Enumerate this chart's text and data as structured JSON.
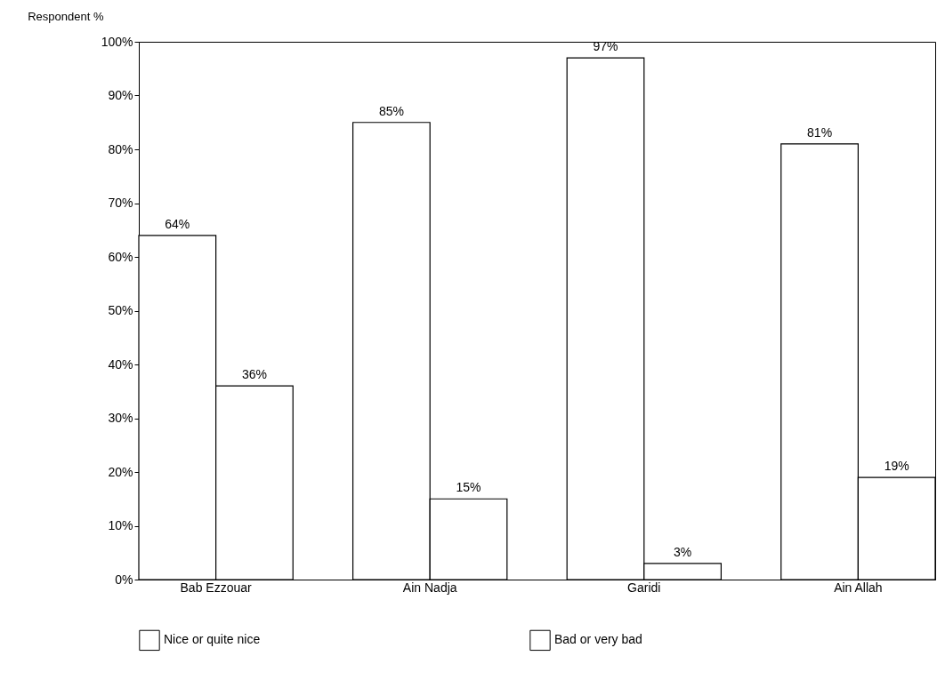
{
  "chart_data": {
    "type": "bar",
    "ylabel": "Respondent %",
    "categories": [
      "Bab Ezzouar",
      "Ain Nadja",
      "Garidi",
      "Ain Allah"
    ],
    "series": [
      {
        "name": "Nice or quite nice",
        "color": "#ffffff",
        "values": [
          64,
          85,
          97,
          81
        ],
        "value_labels": [
          "64%",
          "85%",
          "97%",
          "81%"
        ]
      },
      {
        "name": "Bad or very bad",
        "color": "#ffffff",
        "values": [
          36,
          15,
          3,
          19
        ],
        "value_labels": [
          "36%",
          "15%",
          "3%",
          "19%"
        ]
      }
    ],
    "ylim": [
      0,
      100
    ],
    "yticks": [
      {
        "value": 0,
        "label": "0%"
      },
      {
        "value": 10,
        "label": "10%"
      },
      {
        "value": 20,
        "label": "20%"
      },
      {
        "value": 30,
        "label": "30%"
      },
      {
        "value": 40,
        "label": "40%"
      },
      {
        "value": 50,
        "label": "50%"
      },
      {
        "value": 60,
        "label": "60%"
      },
      {
        "value": 70,
        "label": "70%"
      },
      {
        "value": 80,
        "label": "80%"
      },
      {
        "value": 90,
        "label": "90%"
      },
      {
        "value": 100,
        "label": "100%"
      }
    ],
    "grid": false,
    "legend": "bottom"
  }
}
